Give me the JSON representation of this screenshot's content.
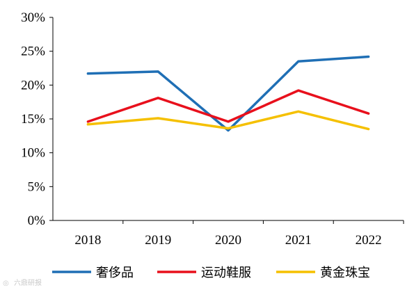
{
  "chart_data": {
    "type": "line",
    "categories": [
      "2018",
      "2019",
      "2020",
      "2021",
      "2022"
    ],
    "y_ticks": [
      "0%",
      "5%",
      "10%",
      "15%",
      "20%",
      "25%",
      "30%"
    ],
    "ylim": [
      0,
      30
    ],
    "grid": false,
    "legend_position": "bottom",
    "series": [
      {
        "name": "奢侈品",
        "color": "#1f6fb5",
        "values": [
          21.7,
          22.0,
          13.3,
          23.5,
          24.2
        ]
      },
      {
        "name": "运动鞋服",
        "color": "#e8101c",
        "values": [
          14.6,
          18.1,
          14.6,
          19.2,
          15.8
        ]
      },
      {
        "name": "黄金珠宝",
        "color": "#f5c000",
        "values": [
          14.2,
          15.1,
          13.6,
          16.1,
          13.5
        ]
      }
    ]
  },
  "watermark": "六鼎研报"
}
